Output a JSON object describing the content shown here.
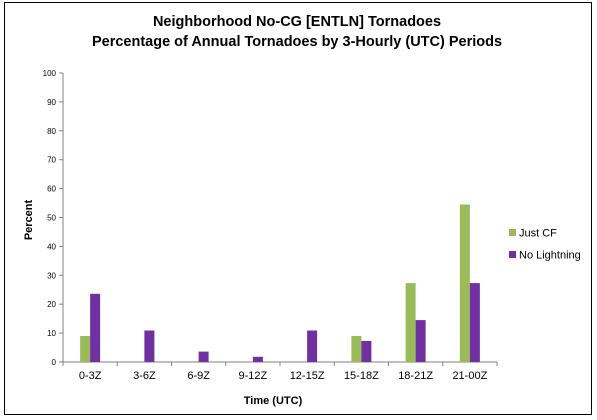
{
  "chart_data": {
    "type": "bar",
    "title": "Neighborhood No-CG [ENTLN] Tornadoes",
    "subtitle": "Percentage of Annual Tornadoes by 3-Hourly (UTC) Periods",
    "xlabel": "Time (UTC)",
    "ylabel": "Percent",
    "ylim": [
      0,
      100
    ],
    "yticks": [
      0,
      10,
      20,
      30,
      40,
      50,
      60,
      70,
      80,
      90,
      100
    ],
    "grid": false,
    "legend_position": "right",
    "categories": [
      "0-3Z",
      "3-6Z",
      "6-9Z",
      "9-12Z",
      "12-15Z",
      "15-18Z",
      "18-21Z",
      "21-00Z"
    ],
    "series": [
      {
        "name": "Just CF",
        "color": "#9BBB59",
        "values": [
          9,
          0,
          0,
          0,
          0,
          9,
          27.3,
          54.5
        ]
      },
      {
        "name": "No Lightning",
        "color": "#7030A0",
        "values": [
          23.6,
          10.9,
          3.6,
          1.8,
          10.9,
          7.3,
          14.5,
          27.3
        ]
      }
    ]
  }
}
